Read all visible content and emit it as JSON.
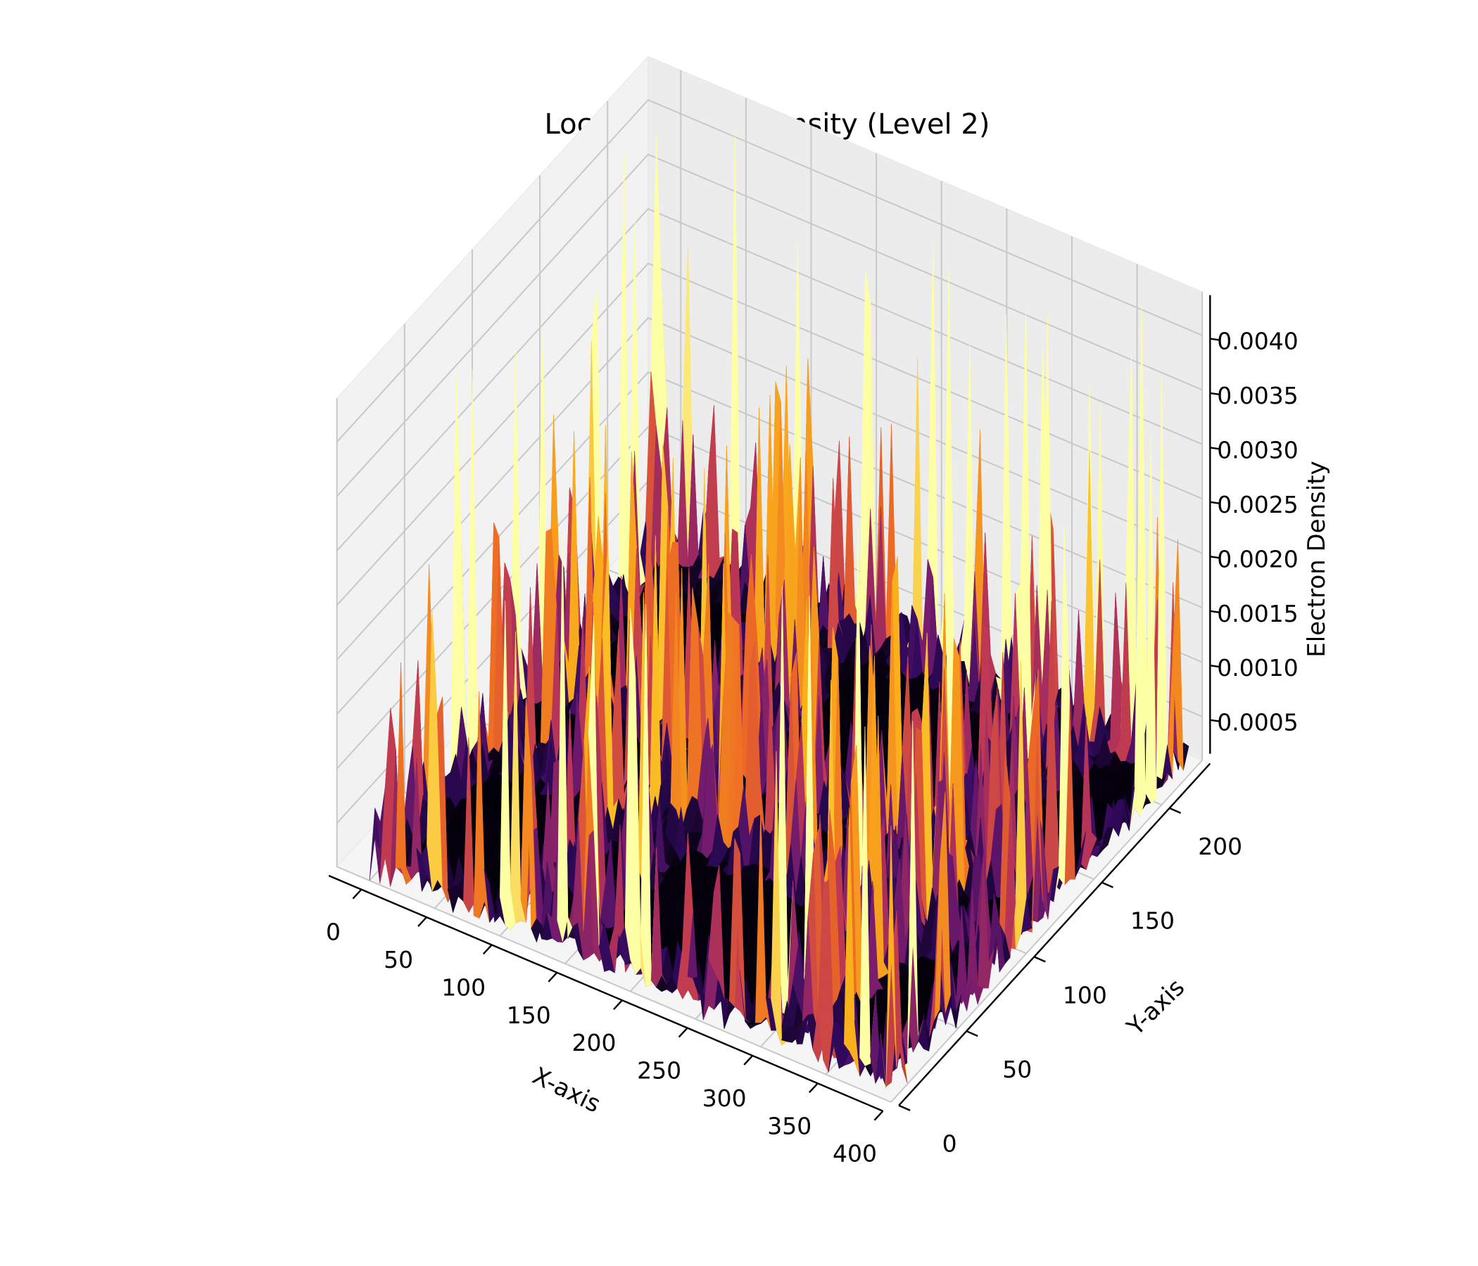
{
  "chart_data": {
    "type": "surface3d",
    "title": "Local Electron Density (Level 2)",
    "xlabel": "X-axis",
    "ylabel": "Y-axis",
    "zlabel": "Electron Density",
    "xlim": [
      0,
      400
    ],
    "ylim": [
      0,
      220
    ],
    "zlim": [
      0.0001,
      0.0044
    ],
    "x_ticks": [
      "0",
      "50",
      "100",
      "150",
      "200",
      "250",
      "300",
      "350",
      "400"
    ],
    "y_ticks": [
      "0",
      "50",
      "100",
      "150",
      "200"
    ],
    "z_ticks": [
      "0.0005",
      "0.0010",
      "0.0015",
      "0.0020",
      "0.0025",
      "0.0030",
      "0.0035",
      "0.0040"
    ],
    "colormap": [
      "#000004",
      "#320a5e",
      "#781c6d",
      "#bc3754",
      "#ed6925",
      "#fbb61a",
      "#fcffa4"
    ],
    "grid": true,
    "block_pattern": {
      "x_bands": [
        [
          0,
          110
        ],
        [
          150,
          300
        ],
        [
          330,
          400
        ]
      ],
      "y_bands": [
        [
          0,
          90
        ],
        [
          130,
          220
        ]
      ],
      "baseline": 0.0001,
      "edge_peak_max": 0.0042
    }
  }
}
